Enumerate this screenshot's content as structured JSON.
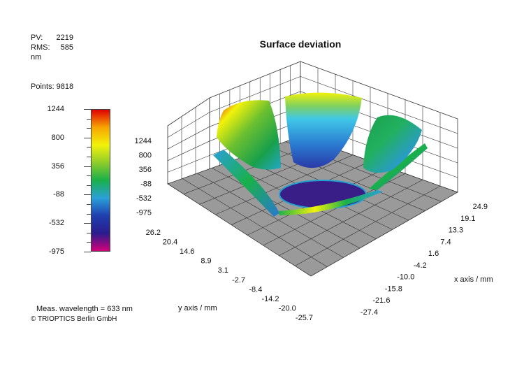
{
  "stats": {
    "pv_label": "PV:",
    "pv_value": "2219",
    "rms_label": "RMS:",
    "rms_value": "585",
    "unit": "nm",
    "points_label": "Points: 9818"
  },
  "footer": {
    "wavelength": "Meas. wavelength = 633 nm",
    "copyright": "© TRIOPTICS Berlin GmbH"
  },
  "colors": {
    "scale_gradient": [
      "#d4007a",
      "#2a1c8c",
      "#1f3fb0",
      "#2aa0d8",
      "#19b04a",
      "#8fcc2a",
      "#f2f20a",
      "#f7a500",
      "#e00000"
    ],
    "floor": "#9a9a9a",
    "grid": "#333333"
  },
  "chart_data": {
    "type": "surface3d",
    "title": "Surface deviation",
    "xlabel": "x axis / mm",
    "ylabel": "y axis / mm",
    "x_ticks": [
      "24.9",
      "19.1",
      "13.3",
      "7.4",
      "1.6",
      "-4.2",
      "-10.0",
      "-15.8",
      "-21.6",
      "-27.4"
    ],
    "y_ticks": [
      "26.2",
      "20.4",
      "14.6",
      "8.9",
      "3.1",
      "-2.7",
      "-8.4",
      "-14.2",
      "-20.0",
      "-25.7"
    ],
    "z_ticks": [
      "1244",
      "800",
      "356",
      "-88",
      "-532",
      "-975"
    ],
    "colorbar_ticks": [
      "1244",
      "800",
      "356",
      "-88",
      "-532",
      "-975"
    ],
    "z_range": [
      -975,
      1244
    ],
    "grid": true
  }
}
